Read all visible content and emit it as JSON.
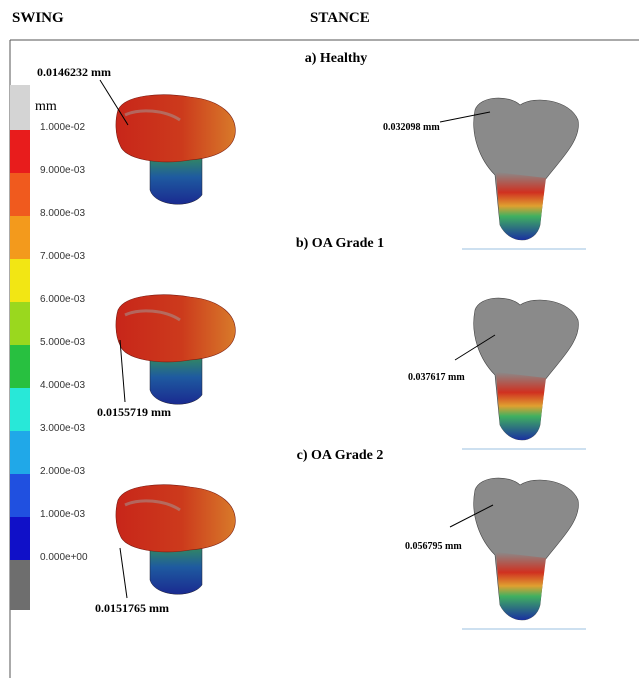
{
  "header": {
    "left": "SWING",
    "right": "STANCE"
  },
  "legend": {
    "unit": "mm",
    "labels": [
      "1.000e-02",
      "9.000e-03",
      "8.000e-03",
      "7.000e-03",
      "6.000e-03",
      "5.000e-03",
      "4.000e-03",
      "3.000e-03",
      "2.000e-03",
      "1.000e-03",
      "0.000e+00"
    ]
  },
  "panels": [
    {
      "title": "a) Healthy",
      "swing_label": "0.0146232 mm",
      "stance_label": "0.032098 mm"
    },
    {
      "title": "b) OA Grade 1",
      "swing_label": "0.0155719 mm",
      "stance_label": "0.037617 mm"
    },
    {
      "title": "c) OA Grade 2",
      "swing_label": "0.0151765 mm",
      "stance_label": "0.056795 mm"
    }
  ]
}
